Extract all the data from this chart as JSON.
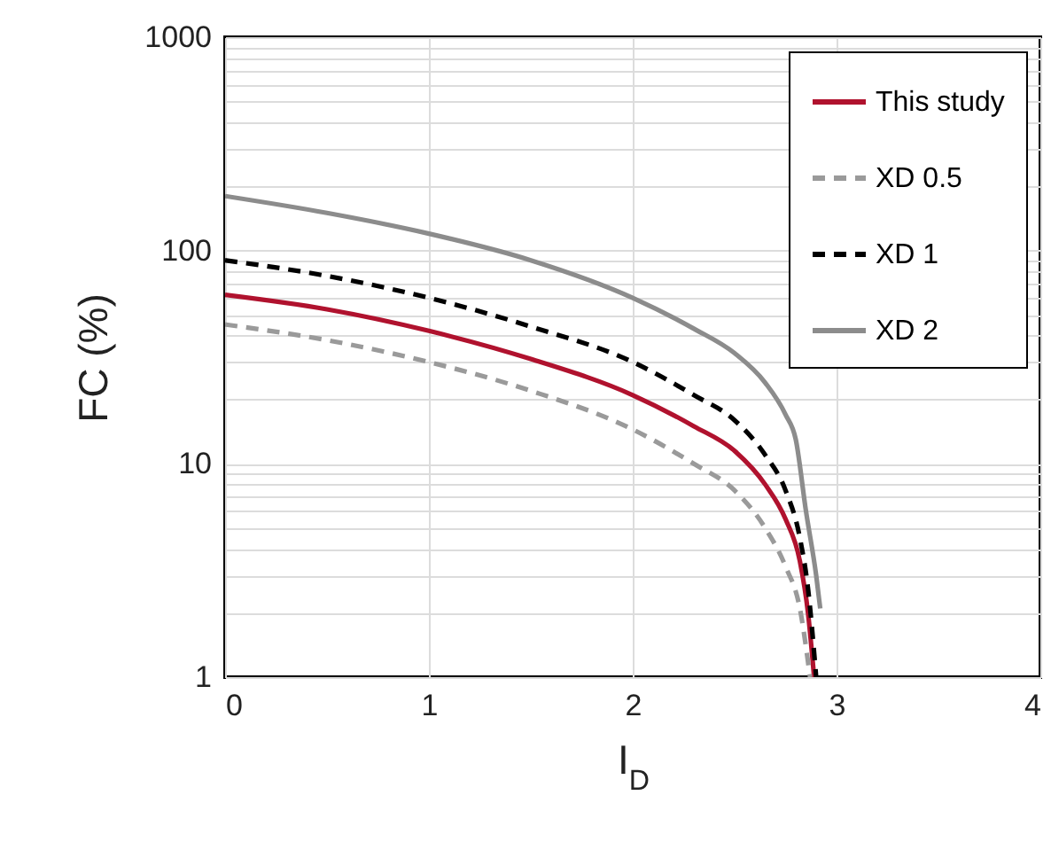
{
  "chart_data": {
    "type": "line",
    "xlabel": "I$_{D}$",
    "ylabel": "FC (%)",
    "log": "y",
    "grid": true,
    "legend": "top right",
    "xlim": [
      0,
      4
    ],
    "xticks": [
      0,
      1,
      2,
      3,
      4
    ],
    "ylim": [
      1,
      1000
    ],
    "yticks": [
      1,
      {
        "value": 2,
        "label": null
      },
      {
        "value": 3,
        "label": null
      },
      {
        "value": 4,
        "label": null
      },
      {
        "value": 5,
        "label": null
      },
      {
        "value": 6,
        "label": null
      },
      {
        "value": 7,
        "label": null
      },
      {
        "value": 8,
        "label": null
      },
      {
        "value": 9,
        "label": null
      },
      10,
      {
        "value": 20,
        "label": null
      },
      {
        "value": 30,
        "label": null
      },
      {
        "value": 40,
        "label": null
      },
      {
        "value": 50,
        "label": null
      },
      {
        "value": 60,
        "label": null
      },
      {
        "value": 70,
        "label": null
      },
      {
        "value": 80,
        "label": null
      },
      {
        "value": 90,
        "label": null
      },
      100,
      {
        "value": 200,
        "label": null
      },
      {
        "value": 300,
        "label": null
      },
      {
        "value": 400,
        "label": null
      },
      {
        "value": 500,
        "label": null
      },
      {
        "value": 600,
        "label": null
      },
      {
        "value": 700,
        "label": null
      },
      {
        "value": 800,
        "label": null
      },
      {
        "value": 900,
        "label": null
      },
      1000
    ],
    "series": [
      {
        "name": "This study",
        "color": "#b0122e",
        "line_style": "solid",
        "x": [
          0,
          0.5,
          1,
          1.5,
          2,
          2.3,
          2.5,
          2.65,
          2.75,
          2.82,
          2.86,
          2.89
        ],
        "values": [
          62,
          53,
          42,
          31,
          21,
          15,
          11.5,
          8,
          5.5,
          3.5,
          2,
          1
        ]
      },
      {
        "name": "XD 0.5",
        "color": "#9a9a9a",
        "line_style": "dashed",
        "x": [
          0,
          0.5,
          1,
          1.5,
          2,
          2.3,
          2.5,
          2.65,
          2.75,
          2.82,
          2.87
        ],
        "values": [
          45,
          38,
          30,
          22,
          14.5,
          10,
          7.5,
          5,
          3.3,
          2.1,
          1
        ]
      },
      {
        "name": "XD 1",
        "color": "#000000",
        "line_style": "dashed",
        "x": [
          0,
          0.5,
          1,
          1.5,
          2,
          2.3,
          2.5,
          2.65,
          2.75,
          2.82,
          2.86,
          2.9
        ],
        "values": [
          90,
          76,
          60,
          44,
          30,
          21,
          16,
          11,
          7.5,
          4.5,
          2.6,
          1
        ]
      },
      {
        "name": "XD 2",
        "color": "#8c8c8c",
        "line_style": "solid",
        "x": [
          0,
          0.5,
          1,
          1.5,
          2,
          2.3,
          2.5,
          2.65,
          2.75,
          2.8,
          2.85,
          2.9,
          2.92
        ],
        "values": [
          180,
          150,
          120,
          90,
          60,
          43,
          33,
          24,
          17,
          13,
          6,
          3,
          2.1
        ]
      }
    ]
  }
}
